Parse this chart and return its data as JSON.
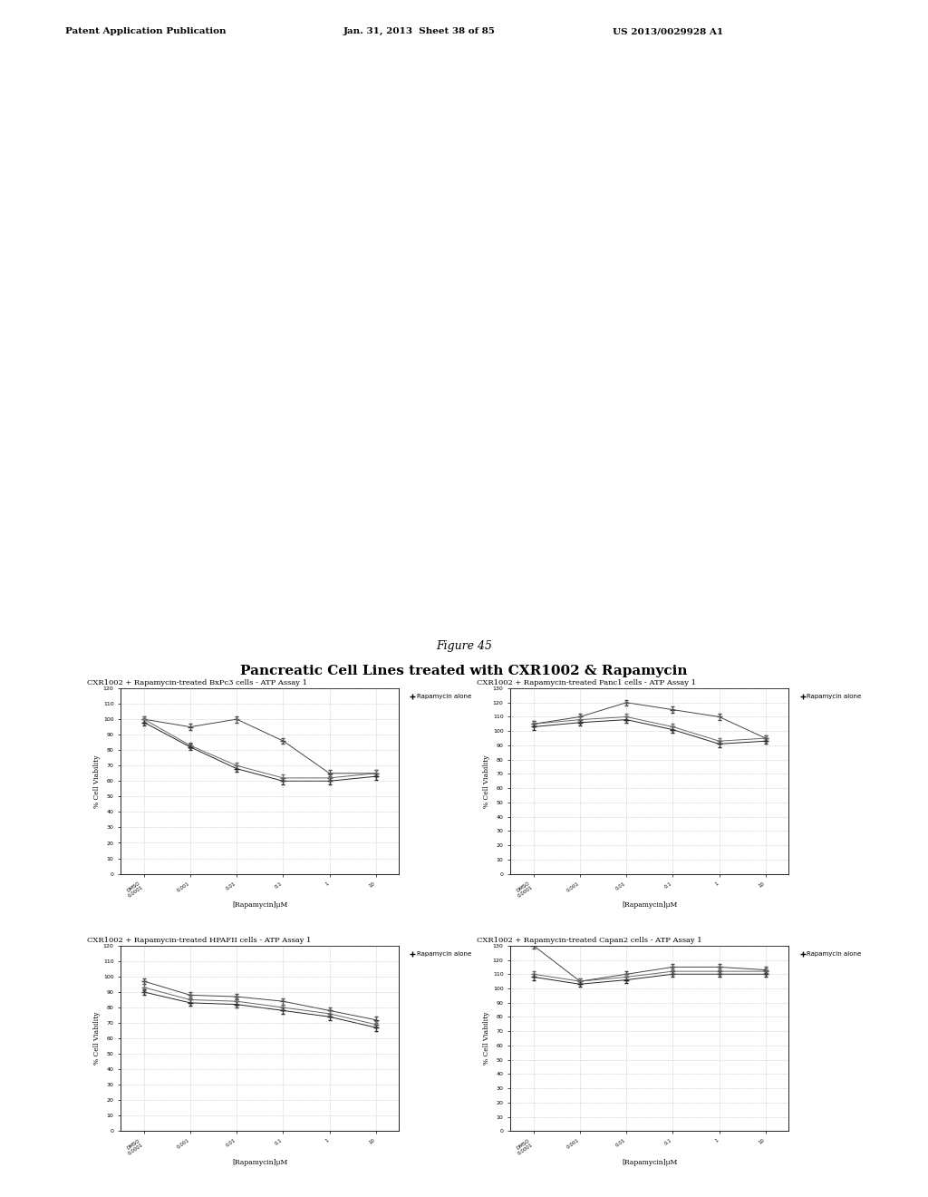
{
  "figure_title": "Figure 45",
  "figure_subtitle": "Pancreatic Cell Lines treated with CXR1002 & Rapamycin",
  "x_labels": [
    "DMSO\n0.0001",
    "0.001",
    "0.01",
    "0.1",
    "1",
    "10"
  ],
  "x_label_name": "[Rapamycin]μM",
  "y_label_name": "% Cell Viability",
  "legend_label": "Rapamycin alone",
  "plots": [
    {
      "title": "CXR1002 + Rapamycin-treated BxPc3 cells - ATP Assay 1",
      "ylim": [
        0,
        120
      ],
      "yticks": [
        0,
        10,
        20,
        30,
        40,
        50,
        60,
        70,
        80,
        90,
        100,
        110,
        120
      ],
      "lines": [
        {
          "y": [
            100,
            95,
            100,
            86,
            65,
            65
          ],
          "color": "#444444"
        },
        {
          "y": [
            100,
            83,
            70,
            62,
            62,
            65
          ],
          "color": "#666666"
        },
        {
          "y": [
            98,
            82,
            68,
            60,
            60,
            63
          ],
          "color": "#222222"
        }
      ]
    },
    {
      "title": "CXR1002 + Rapamycin-treated Panc1 cells - ATP Assay 1",
      "ylim": [
        0,
        130
      ],
      "yticks": [
        0,
        10,
        20,
        30,
        40,
        50,
        60,
        70,
        80,
        90,
        100,
        110,
        120,
        130
      ],
      "lines": [
        {
          "y": [
            105,
            110,
            120,
            115,
            110,
            95
          ],
          "color": "#444444"
        },
        {
          "y": [
            105,
            108,
            110,
            103,
            93,
            95
          ],
          "color": "#666666"
        },
        {
          "y": [
            103,
            106,
            108,
            101,
            91,
            93
          ],
          "color": "#222222"
        }
      ]
    },
    {
      "title": "CXR1002 + Rapamycin-treated HPAFII cells - ATP Assay 1",
      "ylim": [
        0,
        120
      ],
      "yticks": [
        0,
        10,
        20,
        30,
        40,
        50,
        60,
        70,
        80,
        90,
        100,
        110,
        120
      ],
      "lines": [
        {
          "y": [
            97,
            88,
            87,
            84,
            78,
            72
          ],
          "color": "#444444"
        },
        {
          "y": [
            93,
            85,
            84,
            80,
            76,
            69
          ],
          "color": "#666666"
        },
        {
          "y": [
            90,
            83,
            82,
            78,
            74,
            67
          ],
          "color": "#222222"
        }
      ]
    },
    {
      "title": "CXR1002 + Rapamycin-treated Capan2 cells - ATP Assay 1",
      "ylim": [
        0,
        130
      ],
      "yticks": [
        0,
        10,
        20,
        30,
        40,
        50,
        60,
        70,
        80,
        90,
        100,
        110,
        120,
        130
      ],
      "lines": [
        {
          "y": [
            130,
            105,
            110,
            115,
            115,
            113
          ],
          "color": "#444444"
        },
        {
          "y": [
            110,
            105,
            108,
            112,
            112,
            112
          ],
          "color": "#666666"
        },
        {
          "y": [
            108,
            103,
            106,
            110,
            110,
            110
          ],
          "color": "#222222"
        }
      ]
    }
  ]
}
